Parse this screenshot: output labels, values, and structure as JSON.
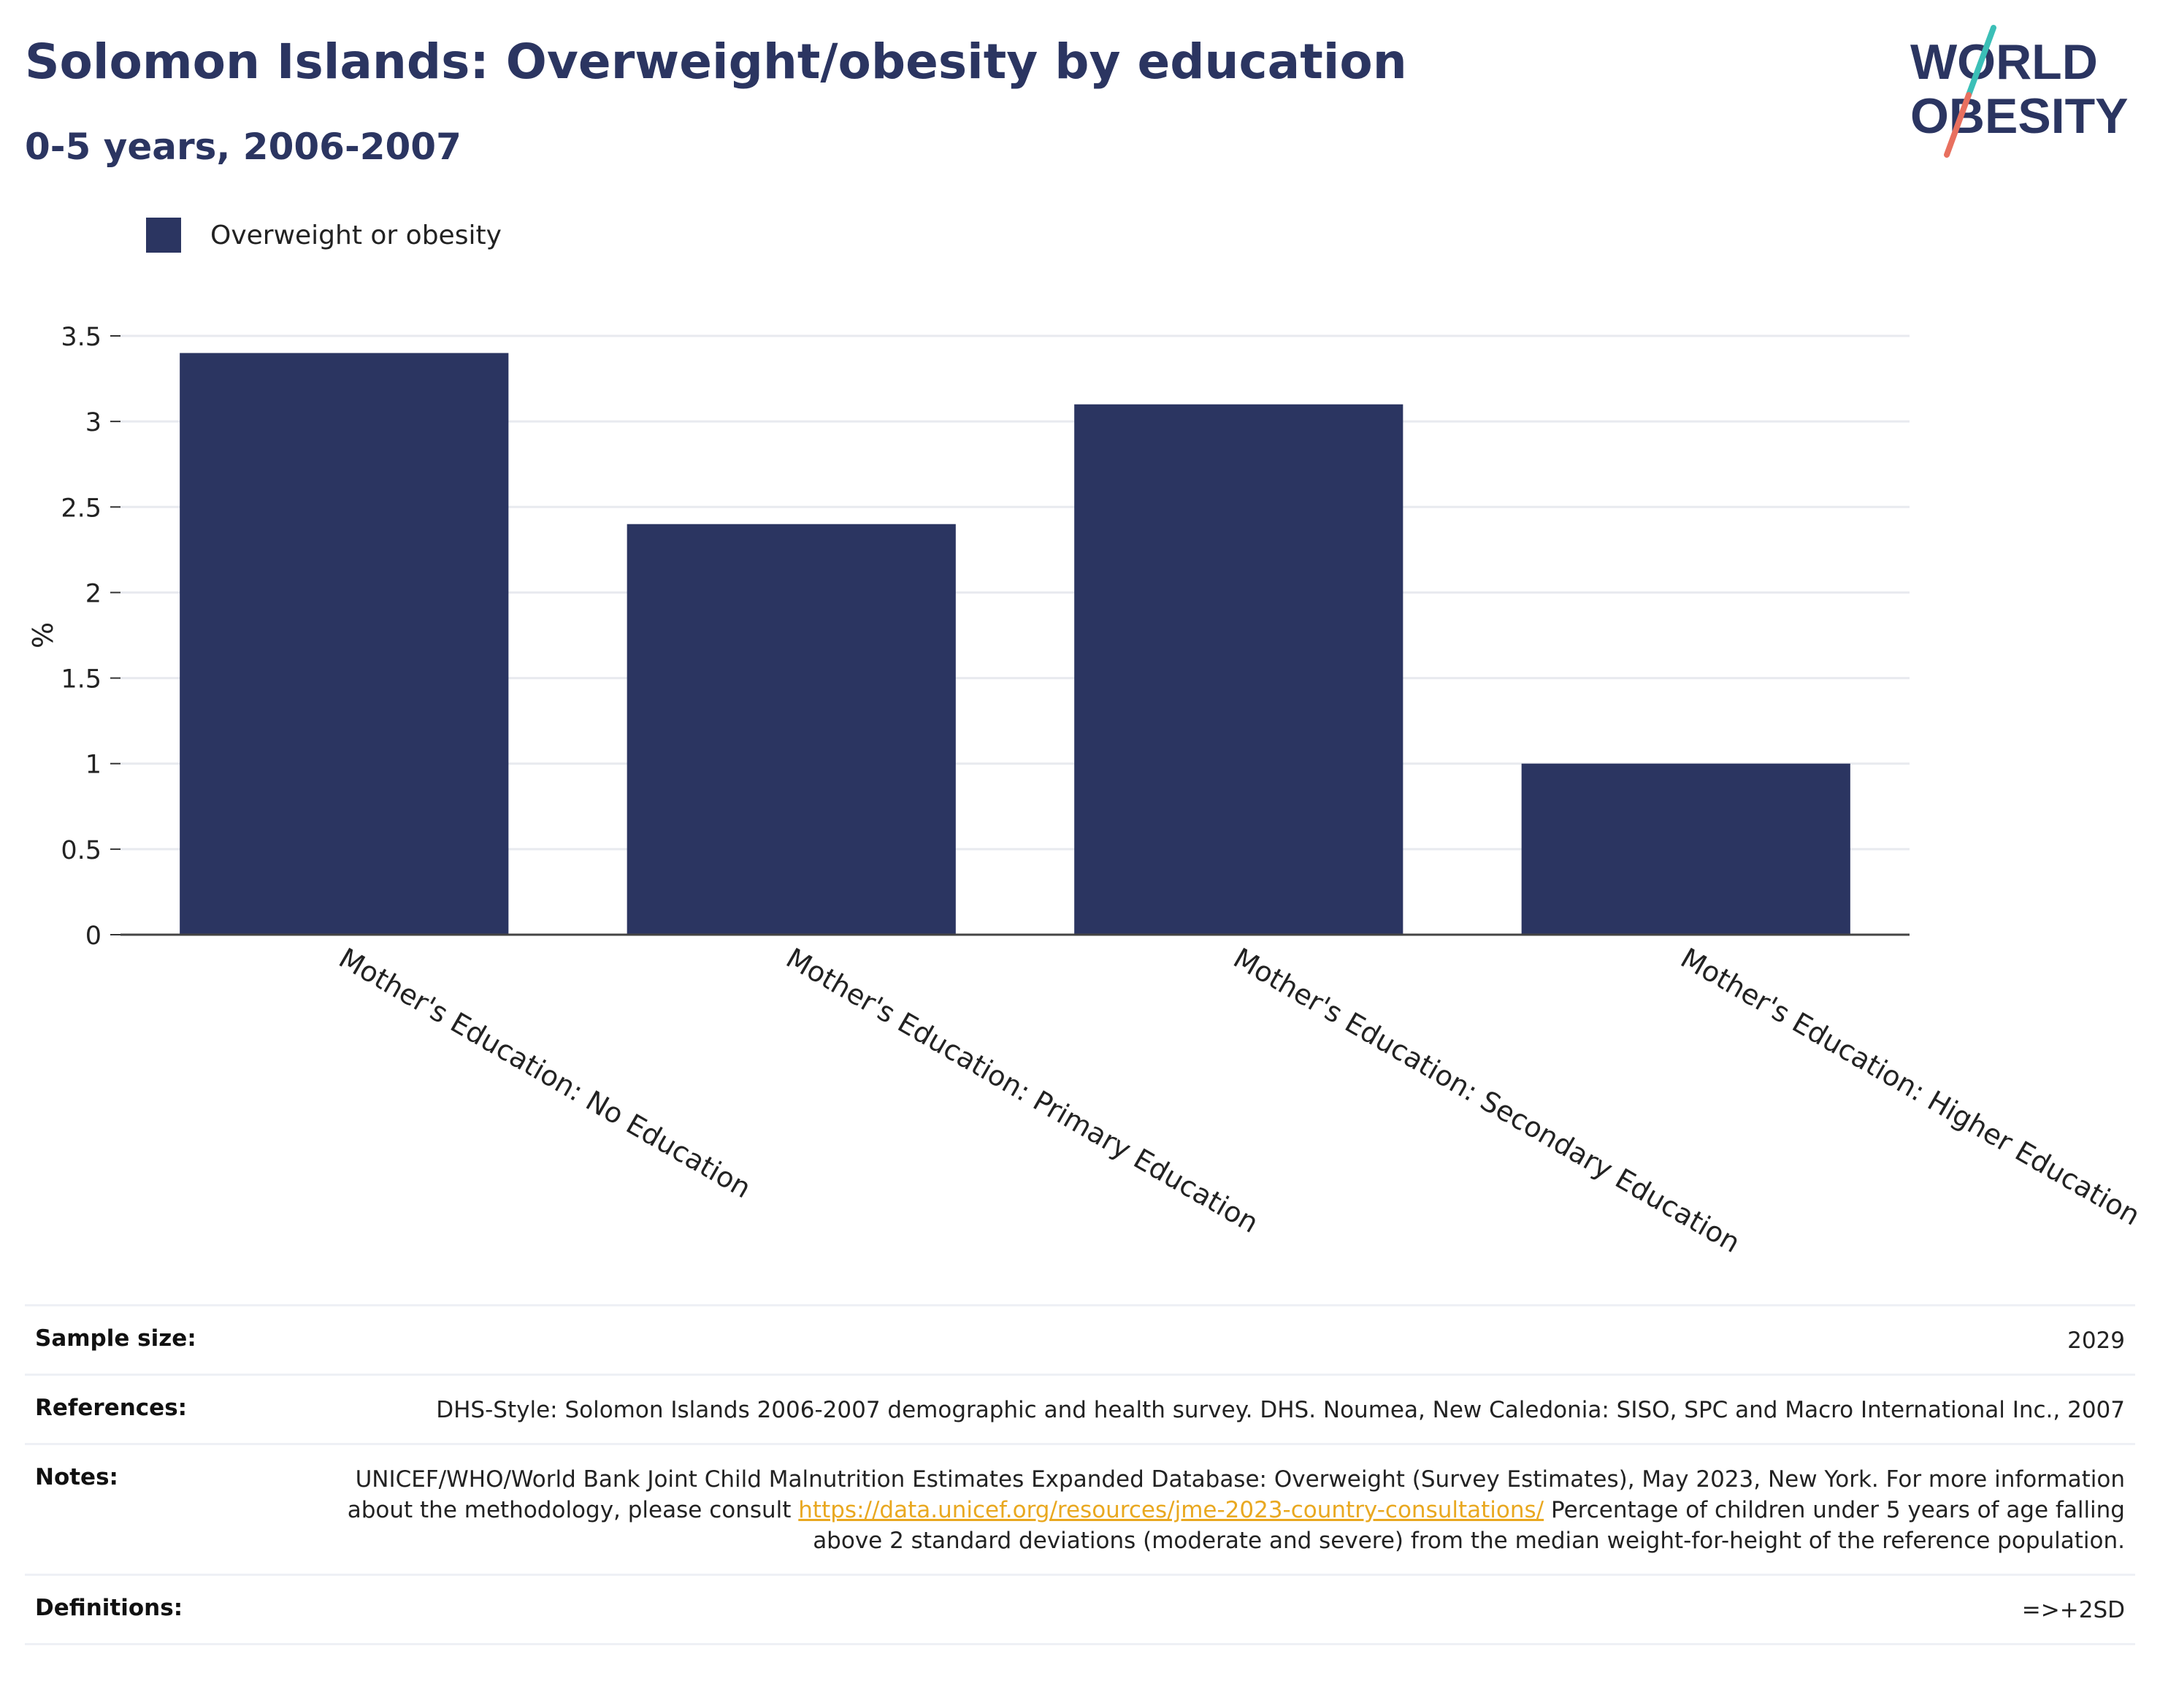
{
  "header": {
    "title": "Solomon Islands: Overweight/obesity by education",
    "subtitle": "0-5 years, 2006-2007"
  },
  "logo": {
    "line1": "WORLD",
    "line2": "OBESITY",
    "colors": {
      "text": "#2b3561",
      "slash_top": "#3bbfb7",
      "slash_bottom": "#e8705f"
    }
  },
  "legend": {
    "label": "Overweight or obesity",
    "color": "#2b3561"
  },
  "chart_data": {
    "type": "bar",
    "categories": [
      "Mother's Education: No Education",
      "Mother's Education: Primary Education",
      "Mother's Education: Secondary Education",
      "Mother's Education: Higher Education"
    ],
    "series": [
      {
        "name": "Overweight or obesity",
        "values": [
          3.4,
          2.4,
          3.1,
          1.0
        ],
        "color": "#2b3561"
      }
    ],
    "ylabel": "%",
    "ylim": [
      0,
      3.5
    ],
    "yticks": [
      "0",
      "0.5",
      "1",
      "1.5",
      "2",
      "2.5",
      "3",
      "3.5"
    ],
    "ytick_values": [
      0,
      0.5,
      1,
      1.5,
      2,
      2.5,
      3,
      3.5
    ],
    "grid": true,
    "legend_position": "top-left"
  },
  "meta": {
    "sample_size_label": "Sample size:",
    "sample_size_value": "2029",
    "references_label": "References:",
    "references_value": "DHS-Style: Solomon Islands 2006-2007 demographic and health survey. DHS. Noumea, New Caledonia: SISO, SPC and Macro International Inc., 2007",
    "notes_label": "Notes:",
    "notes_text_1": "UNICEF/WHO/World Bank Joint Child Malnutrition Estimates Expanded Database: Overweight (Survey Estimates), May 2023, New York. For more information about the methodology, please consult",
    "notes_link": "https://data.unicef.org/resources/jme-2023-country-consultations/",
    "notes_text_2": "Percentage of children under 5 years of age falling above 2 standard deviations (moderate and severe) from the median weight-for-height of the reference population.",
    "definitions_label": "Definitions:",
    "definitions_value": "=>+2SD"
  }
}
